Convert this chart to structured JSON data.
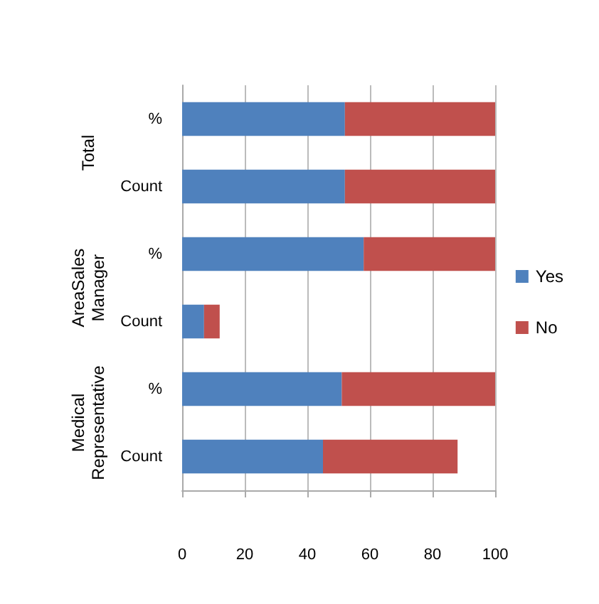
{
  "chart_data": {
    "type": "bar",
    "orientation": "horizontal",
    "stacked": true,
    "categories": [
      "%",
      "Count",
      "%",
      "Count",
      "%",
      "Count"
    ],
    "annotations": [
      "Total",
      "AreaSales Manager",
      "Medical Representative"
    ],
    "series": [
      {
        "name": "Yes",
        "color": "#4f81bd",
        "values": [
          52,
          52,
          58,
          7,
          51,
          45
        ]
      },
      {
        "name": "No",
        "color": "#c0504d",
        "values": [
          48,
          48,
          42,
          5,
          49,
          43
        ]
      }
    ],
    "xlim": [
      0,
      100
    ],
    "xticks": [
      0,
      20,
      40,
      60,
      80,
      100
    ],
    "grid": "x",
    "legend": "right"
  }
}
